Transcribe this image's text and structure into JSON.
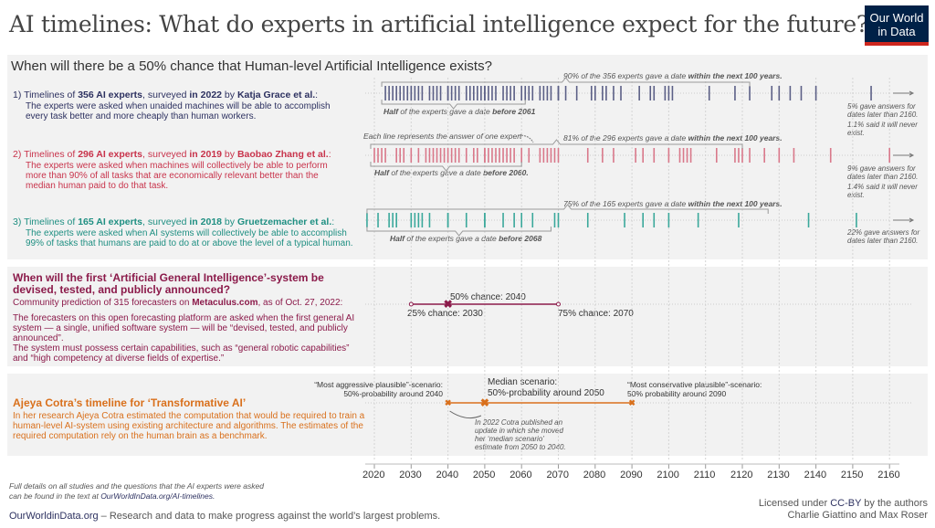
{
  "title": "AI timelines: What do experts in artificial intelligence expect for the future?",
  "logo": {
    "line1": "Our World",
    "line2": "in Data"
  },
  "section1": {
    "question": "When will there be a 50% chance that Human-level Artificial Intelligence exists?",
    "studies": [
      {
        "heading": [
          {
            "t": "1) Timelines of "
          },
          {
            "t": "356 AI experts",
            "b": 1
          },
          {
            "t": ", surveyed "
          },
          {
            "t": "in 2022",
            "b": 1
          },
          {
            "t": " by "
          },
          {
            "t": "Katja Grace et al.",
            "b": 1
          },
          {
            "t": ":"
          }
        ],
        "description": "The experts were asked when unaided machines will be able to accomplish every task better and more cheaply than human workers.",
        "color": "#2d3160",
        "strip_color": "#5b5f86",
        "top_annotation": [
          {
            "t": "90% of the 356 experts gave a date "
          },
          {
            "t": "within the next 100 years.",
            "b": 1
          }
        ],
        "half_annotation": [
          {
            "t": "Half",
            "b": 1
          },
          {
            "t": " of the experts gave a date "
          },
          {
            "t": "before 2061",
            "b": 1
          }
        ],
        "top_bracket": [
          2022,
          2122
        ],
        "half_bracket": [
          2022,
          2061
        ],
        "notes": [
          "5% gave answers for dates later than 2160.",
          "1.1% said it will never exist."
        ],
        "years": [
          2023,
          2024,
          2025,
          2026,
          2027,
          2028,
          2029,
          2030,
          2030,
          2031,
          2032,
          2033,
          2035,
          2036,
          2037,
          2038,
          2040,
          2040,
          2041,
          2042,
          2043,
          2045,
          2046,
          2047,
          2048,
          2049,
          2050,
          2050,
          2051,
          2052,
          2053,
          2055,
          2056,
          2057,
          2058,
          2060,
          2061,
          2062,
          2063,
          2065,
          2066,
          2067,
          2068,
          2070,
          2070,
          2072,
          2075,
          2079,
          2080,
          2082,
          2083,
          2085,
          2087,
          2092,
          2095,
          2096,
          2099,
          2100,
          2101,
          2111,
          2118,
          2122,
          2128,
          2130,
          2133,
          2136,
          2140,
          2155
        ]
      },
      {
        "heading": [
          {
            "t": "2) Timelines of "
          },
          {
            "t": "296 AI experts",
            "b": 1
          },
          {
            "t": ", surveyed "
          },
          {
            "t": "in 2019",
            "b": 1
          },
          {
            "t": " by "
          },
          {
            "t": "Baobao Zhang et al.",
            "b": 1
          },
          {
            "t": ":"
          }
        ],
        "description": "The experts were asked when machines will collectively be able to perform more than 90% of all tasks that are economically relevant better than the median human paid to do that task.",
        "color": "#c8334b",
        "strip_color": "#d9788a",
        "top_annotation": [
          {
            "t": "81% of the 296 experts gave a date "
          },
          {
            "t": "within the next 100 years.",
            "b": 1
          }
        ],
        "half_annotation": [
          {
            "t": "Half",
            "b": 1
          },
          {
            "t": " of the experts gave a date "
          },
          {
            "t": "before 2060.",
            "b": 1
          }
        ],
        "top_bracket": [
          2019,
          2120
        ],
        "half_bracket": [
          2019,
          2060
        ],
        "notes": [
          "9% gave answers for dates later than 2160.",
          "1.4% said it will never exist."
        ],
        "years": [
          2020,
          2021,
          2022,
          2023,
          2026,
          2027,
          2028,
          2030,
          2032,
          2034,
          2035,
          2036,
          2037,
          2038,
          2039,
          2040,
          2041,
          2042,
          2043,
          2045,
          2047,
          2048,
          2050,
          2050,
          2051,
          2052,
          2053,
          2054,
          2055,
          2056,
          2057,
          2058,
          2060,
          2062,
          2065,
          2066,
          2067,
          2068,
          2069,
          2070,
          2078,
          2082,
          2085,
          2091,
          2093,
          2096,
          2100,
          2103,
          2104,
          2105,
          2106,
          2113,
          2118,
          2119,
          2120,
          2122,
          2126,
          2130,
          2134,
          2144,
          2160
        ]
      },
      {
        "heading": [
          {
            "t": "3) Timelines of "
          },
          {
            "t": "165 AI experts",
            "b": 1
          },
          {
            "t": ", surveyed "
          },
          {
            "t": "in 2018",
            "b": 1
          },
          {
            "t": " by "
          },
          {
            "t": "Gruetzemacher et al.",
            "b": 1
          },
          {
            "t": ":"
          }
        ],
        "description": "The experts were asked when AI systems will collectively be able to accomplish 99% of tasks that humans are paid to do at or above the level of a typical human.",
        "color": "#1f8f82",
        "strip_color": "#3aa89b",
        "top_annotation": [
          {
            "t": "75% of the 165 experts gave a date "
          },
          {
            "t": "within the next 100 years.",
            "b": 1
          }
        ],
        "half_annotation": [
          {
            "t": "Half",
            "b": 1
          },
          {
            "t": " of the experts gave a date "
          },
          {
            "t": "before 2068",
            "b": 1
          }
        ],
        "top_bracket": [
          2018,
          2127
        ],
        "half_bracket": [
          2018,
          2068
        ],
        "notes": [
          "22% gave answers for dates later than 2160."
        ],
        "years": [
          2018,
          2021,
          2024,
          2025,
          2026,
          2030,
          2031,
          2032,
          2033,
          2035,
          2040,
          2040,
          2045,
          2050,
          2050,
          2055,
          2058,
          2060,
          2063,
          2069,
          2070,
          2078,
          2088,
          2093,
          2096,
          2100,
          2108,
          2119,
          2138,
          2151
        ]
      }
    ],
    "each_line_note": "Each line represents the answer of one expert"
  },
  "section2": {
    "heading": "When will the first ‘Artificial General Intelligence’-system be devised, tested, and publicly announced?",
    "source": [
      {
        "t": "Community prediction of 315 forecasters on "
      },
      {
        "t": "Metaculus.com",
        "b": 1
      },
      {
        "t": ",  as of Oct. 27, 2022:"
      }
    ],
    "description1": "The forecasters on this open forecasting platform are asked when the first general AI system — a single, unified software system — will be “devised, tested, and publicly announced”.",
    "description2": "The system must possess certain capabilities, such as “general robotic capabilities” and “high competency at diverse fields of expertise.”",
    "color": "#8b1a4a",
    "p25": {
      "year": 2030,
      "label": "25% chance: 2030"
    },
    "p50": {
      "year": 2040,
      "label": "50% chance: 2040"
    },
    "p75": {
      "year": 2070,
      "label": "75% chance: 2070"
    }
  },
  "section3": {
    "heading": "Ajeya Cotra’s timeline for ‘Transformative AI’",
    "description": "In her research Ajeya Cotra estimated the computation that would be required to train a human-level AI-system using existing architecture and algorithms. The estimates of the required computation rely on the human brain as a benchmark.",
    "color": "#d9701c",
    "aggressive": {
      "year": 2040,
      "label1": "“Most aggressive plausible”-scenario:",
      "label2": "50%-probability around 2040"
    },
    "median": {
      "year": 2050,
      "label1": "Median scenario:",
      "label2": "50%-probability around 2050"
    },
    "conservative": {
      "year": 2090,
      "label1": "“Most conservative plausible”-scenario:",
      "label2": "50% probability around 2090"
    },
    "update_note": "In 2022 Cotra published an update in which she moved her ‘median scenario’ estimate from 2050 to 2040."
  },
  "axis": {
    "ticks": [
      2020,
      2030,
      2040,
      2050,
      2060,
      2070,
      2080,
      2090,
      2100,
      2110,
      2120,
      2130,
      2140,
      2150,
      2160
    ]
  },
  "footer": {
    "details": "Full details on all studies and the questions that the AI experts were asked can be found in the text at ",
    "details_link": "OurWorldInData.org/AI-timelines.",
    "site": "OurWorldinData.org",
    "tagline": " – Research and data to make progress against the world’s largest problems.",
    "license_pre": "Licensed under ",
    "license_link": "CC-BY",
    "license_post": " by the authors",
    "authors": "Charlie Giattino and Max Roser"
  }
}
